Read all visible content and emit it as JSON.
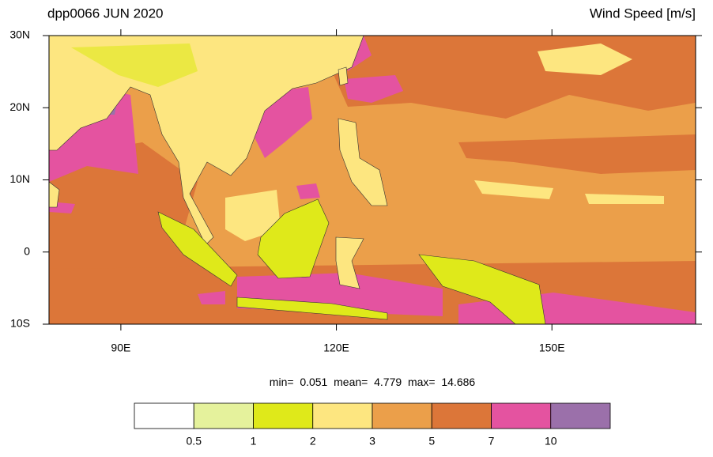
{
  "header": {
    "title": "dpp0066 JUN 2020",
    "variable": "Wind Speed [m/s]"
  },
  "chart_data": {
    "type": "map",
    "xlim": [
      80,
      170
    ],
    "xticks": [
      {
        "value": 90,
        "label": "90E"
      },
      {
        "value": 120,
        "label": "120E"
      },
      {
        "value": 150,
        "label": "150E"
      }
    ],
    "ylim": [
      -10,
      30
    ],
    "yticks": [
      {
        "value": 30,
        "label": "30N"
      },
      {
        "value": 20,
        "label": "20N"
      },
      {
        "value": 10,
        "label": "10N"
      },
      0,
      {
        "value": -10,
        "label": "10S"
      }
    ]
  },
  "stats": {
    "min_label": "min=",
    "min": 0.051,
    "mean_label": "mean=",
    "mean": 4.779,
    "max_label": "max=",
    "max": 14.686
  },
  "colorbar": {
    "levels": [
      0.5,
      1,
      2,
      3,
      5,
      7,
      10
    ],
    "colors": [
      "#ffffff",
      "#e5f29c",
      "#dfe91a",
      "#fde680",
      "#eb9f4a",
      "#dc7639",
      "#e453a0",
      "#9b70aa"
    ]
  }
}
